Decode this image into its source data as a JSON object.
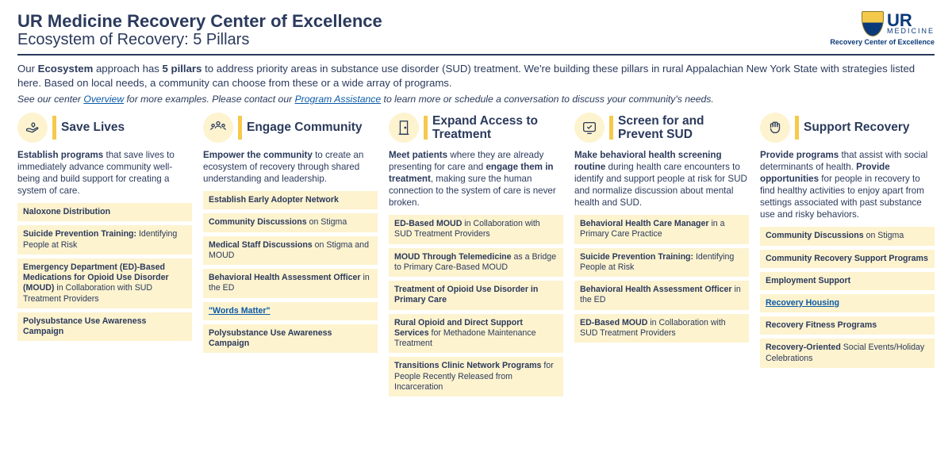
{
  "header": {
    "title": "UR Medicine Recovery Center of Excellence",
    "subtitle_a": "Ecosystem of Recovery:",
    "subtitle_b": "5 Pillars",
    "logo_top": "UR",
    "logo_under": "MEDICINE",
    "logo_sub": "Recovery Center of Excellence"
  },
  "intro": {
    "p1_a": "Our ",
    "p1_b": "Ecosystem",
    "p1_c": " approach has ",
    "p1_d": "5 pillars",
    "p1_e": " to address priority areas in substance use disorder (SUD) treatment. We're building these pillars in rural Appalachian New York State with strategies listed here. Based on local needs, a community can choose from these or a wide array of programs.",
    "note_a": "See our center ",
    "note_link1": "Overview",
    "note_b": " for more examples. Please contact our ",
    "note_link2": "Program Assistance",
    "note_c": " to learn more or schedule a conversation to discuss your community's needs."
  },
  "pillars": [
    {
      "icon": "heart-hand",
      "title": "Save Lives",
      "desc_parts": [
        {
          "b": true,
          "t": "Establish programs"
        },
        {
          "b": false,
          "t": " that save lives to immediately advance community well-being and build support for creating a system of care."
        }
      ],
      "items": [
        [
          {
            "b": true,
            "t": "Naloxone Distribution"
          }
        ],
        [
          {
            "b": true,
            "t": "Suicide Prevention Training:"
          },
          {
            "b": false,
            "t": " Identifying People at Risk"
          }
        ],
        [
          {
            "b": true,
            "t": "Emergency Department (ED)-Based Medications for Opioid Use Disorder (MOUD)"
          },
          {
            "b": false,
            "t": " in Collaboration with SUD Treatment Providers"
          }
        ],
        [
          {
            "b": true,
            "t": "Polysubstance Use Awareness Campaign"
          }
        ]
      ]
    },
    {
      "icon": "people",
      "title": "Engage Community",
      "desc_parts": [
        {
          "b": true,
          "t": "Empower the community"
        },
        {
          "b": false,
          "t": " to create an ecosystem of recovery through shared understanding and leadership."
        }
      ],
      "items": [
        [
          {
            "b": true,
            "t": "Establish Early Adopter Network"
          }
        ],
        [
          {
            "b": true,
            "t": "Community Discussions"
          },
          {
            "b": false,
            "t": " on Stigma"
          }
        ],
        [
          {
            "b": true,
            "t": "Medical Staff Discussions"
          },
          {
            "b": false,
            "t": " on Stigma and MOUD"
          }
        ],
        [
          {
            "b": true,
            "t": "Behavioral Health Assessment Officer"
          },
          {
            "b": false,
            "t": " in the ED"
          }
        ],
        [
          {
            "link": true,
            "t": "\"Words Matter\""
          }
        ],
        [
          {
            "b": true,
            "t": "Polysubstance Use Awareness Campaign"
          }
        ]
      ]
    },
    {
      "icon": "door",
      "title": "Expand Access to Treatment",
      "desc_parts": [
        {
          "b": true,
          "t": "Meet patients"
        },
        {
          "b": false,
          "t": " where they are already presenting for care and "
        },
        {
          "b": true,
          "t": "engage them in treatment"
        },
        {
          "b": false,
          "t": ", making sure the human connection to the system of care is never broken."
        }
      ],
      "items": [
        [
          {
            "b": true,
            "t": "ED-Based MOUD"
          },
          {
            "b": false,
            "t": " in Collaboration with SUD Treatment Providers"
          }
        ],
        [
          {
            "b": true,
            "t": "MOUD Through Telemedicine"
          },
          {
            "b": false,
            "t": " as a Bridge to Primary Care-Based MOUD"
          }
        ],
        [
          {
            "b": true,
            "t": "Treatment of Opioid Use Disorder in Primary Care"
          }
        ],
        [
          {
            "b": true,
            "t": "Rural Opioid and Direct Support Services"
          },
          {
            "b": false,
            "t": " for Methadone Maintenance Treatment"
          }
        ],
        [
          {
            "b": true,
            "t": "Transitions Clinic Network Programs"
          },
          {
            "b": false,
            "t": " for People Recently Released from Incarceration"
          }
        ]
      ]
    },
    {
      "icon": "screen",
      "title": "Screen for and Prevent SUD",
      "desc_parts": [
        {
          "b": true,
          "t": "Make behavioral health screening routine"
        },
        {
          "b": false,
          "t": " during health care encounters to identify and support people at risk for SUD and normalize discussion about mental health and SUD."
        }
      ],
      "items": [
        [
          {
            "b": true,
            "t": "Behavioral Health Care Manager"
          },
          {
            "b": false,
            "t": " in a Primary Care Practice"
          }
        ],
        [
          {
            "b": true,
            "t": "Suicide Prevention Training:"
          },
          {
            "b": false,
            "t": " Identifying People at Risk"
          }
        ],
        [
          {
            "b": true,
            "t": "Behavioral Health Assessment Officer"
          },
          {
            "b": false,
            "t": " in the ED"
          }
        ],
        [
          {
            "b": true,
            "t": "ED-Based MOUD"
          },
          {
            "b": false,
            "t": " in Collaboration with SUD Treatment Providers"
          }
        ]
      ]
    },
    {
      "icon": "hands",
      "title": "Support Recovery",
      "desc_parts": [
        {
          "b": true,
          "t": "Provide programs"
        },
        {
          "b": false,
          "t": " that assist with social determinants of health. "
        },
        {
          "b": true,
          "t": "Provide opportunities"
        },
        {
          "b": false,
          "t": " for people in recovery to find healthy activities to enjoy apart from settings associated with past substance use and risky behaviors."
        }
      ],
      "items": [
        [
          {
            "b": true,
            "t": "Community Discussions"
          },
          {
            "b": false,
            "t": " on Stigma"
          }
        ],
        [
          {
            "b": true,
            "t": "Community Recovery Support Programs"
          }
        ],
        [
          {
            "b": true,
            "t": "Employment Support"
          }
        ],
        [
          {
            "link": true,
            "t": "Recovery Housing"
          }
        ],
        [
          {
            "b": true,
            "t": "Recovery Fitness Programs"
          }
        ],
        [
          {
            "b": true,
            "t": "Recovery-Oriented"
          },
          {
            "b": false,
            "t": " Social Events/Holiday Celebrations"
          }
        ]
      ]
    }
  ],
  "colors": {
    "text": "#2b3a5c",
    "highlight": "#fdf3cf",
    "bar": "#f6c94a",
    "link": "#0a5aa8"
  }
}
